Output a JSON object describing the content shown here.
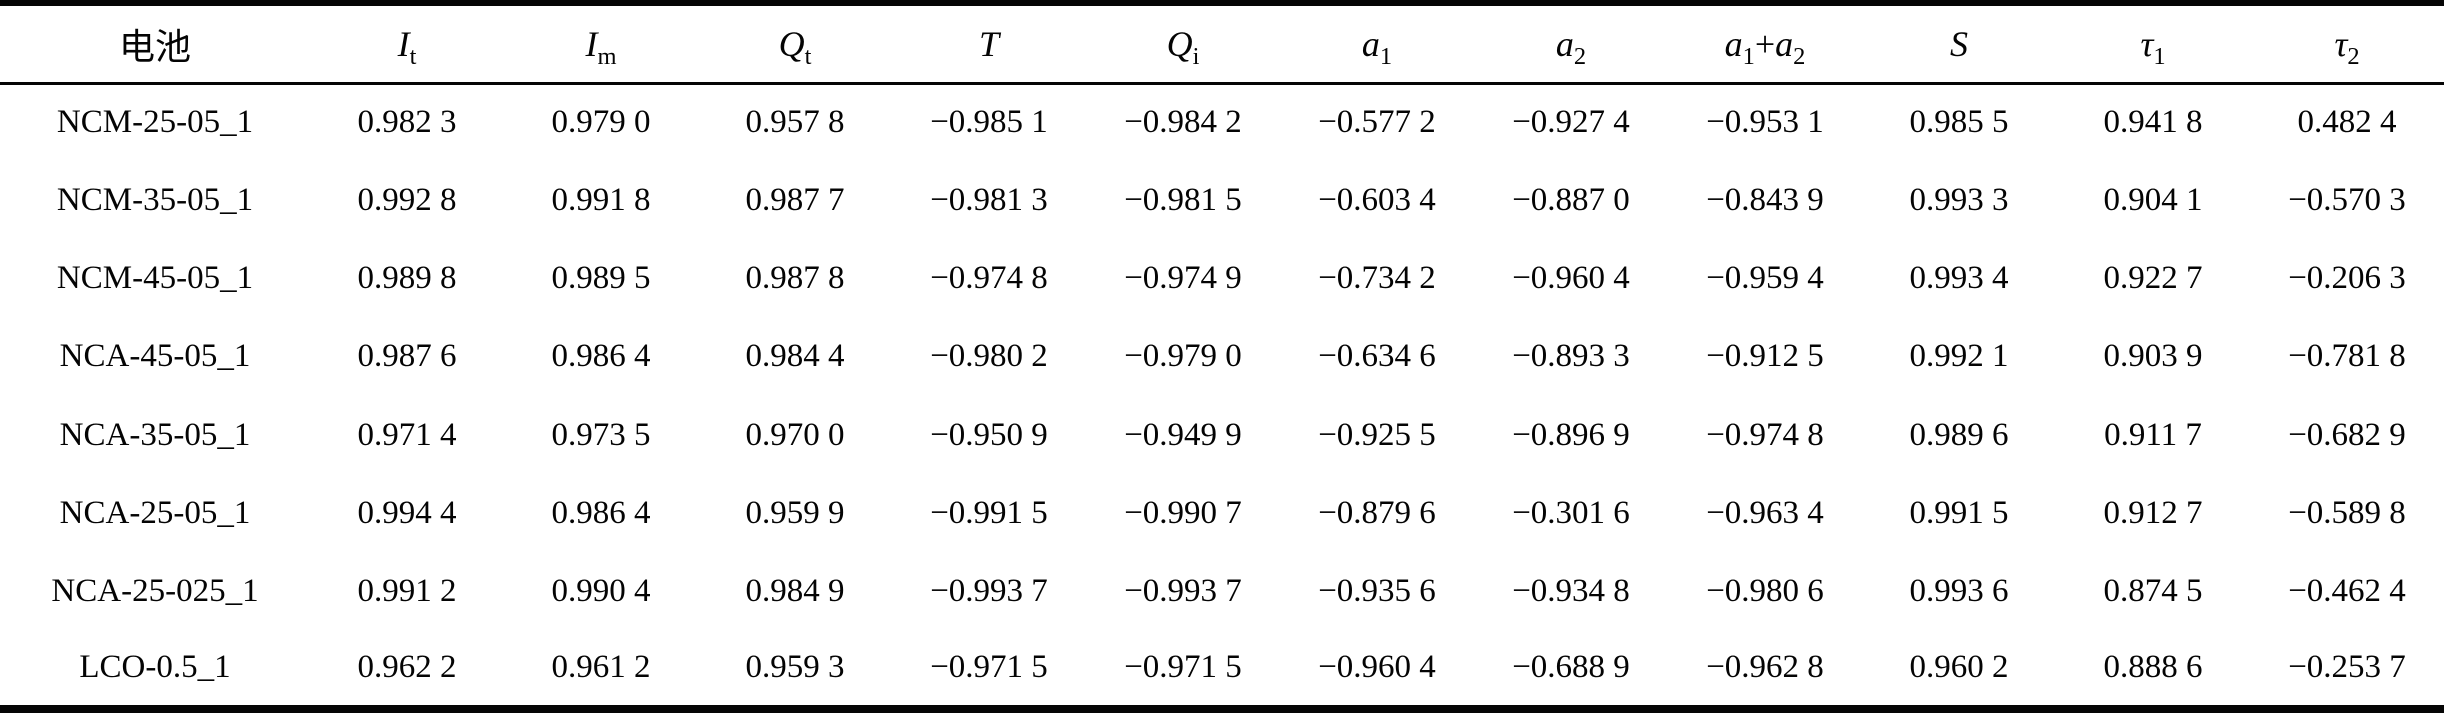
{
  "page": {
    "background": "#ffffff",
    "text_color": "#040404",
    "rule_color": "#050505"
  },
  "table": {
    "columns": [
      {
        "name": "battery",
        "label": [
          {
            "t": "电池"
          }
        ]
      },
      {
        "name": "I-t",
        "label": [
          {
            "t": "I",
            "i": true
          },
          {
            "t": "t",
            "sub": true
          }
        ]
      },
      {
        "name": "I-m",
        "label": [
          {
            "t": "I",
            "i": true
          },
          {
            "t": "m",
            "sub": true
          }
        ]
      },
      {
        "name": "Q-t",
        "label": [
          {
            "t": "Q",
            "i": true
          },
          {
            "t": "t",
            "sub": true
          }
        ]
      },
      {
        "name": "T",
        "label": [
          {
            "t": "T",
            "i": true
          }
        ]
      },
      {
        "name": "Q-i",
        "label": [
          {
            "t": "Q",
            "i": true
          },
          {
            "t": "i",
            "sub": true
          }
        ]
      },
      {
        "name": "a-1",
        "label": [
          {
            "t": "a",
            "i": true
          },
          {
            "t": "1",
            "sub": true
          }
        ]
      },
      {
        "name": "a-2",
        "label": [
          {
            "t": "a",
            "i": true
          },
          {
            "t": "2",
            "sub": true
          }
        ]
      },
      {
        "name": "a-1-plus-a-2",
        "label": [
          {
            "t": "a",
            "i": true
          },
          {
            "t": "1",
            "sub": true
          },
          {
            "t": "+"
          },
          {
            "t": "a",
            "i": true
          },
          {
            "t": "2",
            "sub": true
          }
        ]
      },
      {
        "name": "S",
        "label": [
          {
            "t": "S",
            "i": true
          }
        ]
      },
      {
        "name": "tau-1",
        "label": [
          {
            "t": "τ",
            "i": true
          },
          {
            "t": "1",
            "sub": true
          }
        ]
      },
      {
        "name": "tau-2",
        "label": [
          {
            "t": "τ",
            "i": true
          },
          {
            "t": "2",
            "sub": true
          }
        ]
      }
    ],
    "rows": [
      {
        "battery": "NCM-25-05_1",
        "values": [
          "0.982 3",
          "0.979 0",
          "0.957 8",
          "−0.985 1",
          "−0.984 2",
          "−0.577 2",
          "−0.927 4",
          "−0.953 1",
          "0.985 5",
          "0.941 8",
          "0.482 4"
        ]
      },
      {
        "battery": "NCM-35-05_1",
        "values": [
          "0.992 8",
          "0.991 8",
          "0.987 7",
          "−0.981 3",
          "−0.981 5",
          "−0.603 4",
          "−0.887 0",
          "−0.843 9",
          "0.993 3",
          "0.904 1",
          "−0.570 3"
        ]
      },
      {
        "battery": "NCM-45-05_1",
        "values": [
          "0.989 8",
          "0.989 5",
          "0.987 8",
          "−0.974 8",
          "−0.974 9",
          "−0.734 2",
          "−0.960 4",
          "−0.959 4",
          "0.993 4",
          "0.922 7",
          "−0.206 3"
        ]
      },
      {
        "battery": "NCA-45-05_1",
        "values": [
          "0.987 6",
          "0.986 4",
          "0.984 4",
          "−0.980 2",
          "−0.979 0",
          "−0.634 6",
          "−0.893 3",
          "−0.912 5",
          "0.992 1",
          "0.903 9",
          "−0.781 8"
        ]
      },
      {
        "battery": "NCA-35-05_1",
        "values": [
          "0.971 4",
          "0.973 5",
          "0.970 0",
          "−0.950 9",
          "−0.949 9",
          "−0.925 5",
          "−0.896 9",
          "−0.974 8",
          "0.989 6",
          "0.911 7",
          "−0.682 9"
        ]
      },
      {
        "battery": "NCA-25-05_1",
        "values": [
          "0.994 4",
          "0.986 4",
          "0.959 9",
          "−0.991 5",
          "−0.990 7",
          "−0.879 6",
          "−0.301 6",
          "−0.963 4",
          "0.991 5",
          "0.912 7",
          "−0.589 8"
        ]
      },
      {
        "battery": "NCA-25-025_1",
        "values": [
          "0.991 2",
          "0.990 4",
          "0.984 9",
          "−0.993 7",
          "−0.993 7",
          "−0.935 6",
          "−0.934 8",
          "−0.980 6",
          "0.993 6",
          "0.874 5",
          "−0.462 4"
        ]
      },
      {
        "battery": "LCO-0.5_1",
        "values": [
          "0.962 2",
          "0.961 2",
          "0.959 3",
          "−0.971 5",
          "−0.971 5",
          "−0.960 4",
          "−0.688 9",
          "−0.962 8",
          "0.960 2",
          "0.888 6",
          "−0.253 7"
        ]
      }
    ]
  }
}
